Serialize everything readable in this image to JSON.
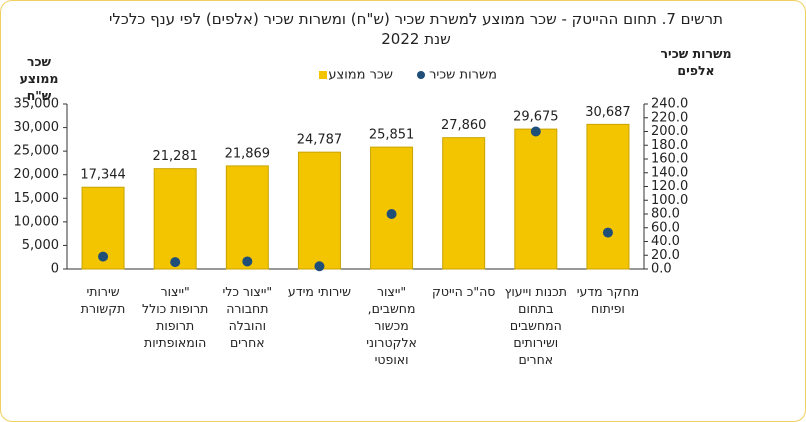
{
  "chart_data": {
    "type": "bar",
    "title": "תרשים 7. תחום ההייטק -  שכר ממוצע למשרת שכיר (ש\"ח) ומשרות שכיר (אלפים) לפי ענף כלכלי",
    "subtitle": "שנת 2022",
    "y_label": "שכר ממוצע ש\"ח",
    "y2_label": "משרות שכיר אלפים",
    "categories": [
      "שירותי תקשורת",
      "\"ייצור תרופות כולל תרופות הומאופתיות",
      "\"ייצור כלי תחבורה והובלה אחרים",
      "שירותי מידע",
      "\"ייצור מחשבים, מכשור אלקטרוני ואופטי",
      "סה\"כ הייטק",
      "תכנות וייעוץ בתחום המחשבים ושירותים אחרים",
      "מחקר מדעי ופיתוח"
    ],
    "series": [
      {
        "name": "שכר ממוצע",
        "color": "#f2c500",
        "values": [
          17344,
          21281,
          21869,
          24787,
          25851,
          27860,
          29675,
          30687
        ],
        "value_labels": [
          "17,344",
          "21,281",
          "21,869",
          "24,787",
          "25,851",
          "27,860",
          "29,675",
          "30,687"
        ]
      },
      {
        "name": "משרות שכיר",
        "color": "#1f4e79",
        "axis": "y2",
        "values": [
          18,
          10,
          11,
          4,
          80,
          null,
          200,
          53
        ]
      }
    ],
    "ylim": [
      0,
      35000
    ],
    "yticks": [
      0,
      {
        "value": 5000,
        "label": "5,000"
      },
      {
        "value": 10000,
        "label": "10,000"
      },
      {
        "value": 15000,
        "label": "15,000"
      },
      {
        "value": 20000,
        "label": "20,000"
      },
      {
        "value": 25000,
        "label": "25,000"
      },
      {
        "value": 30000,
        "label": "30,000"
      },
      {
        "value": 35000,
        "label": "35,000"
      }
    ],
    "y2lim": [
      0,
      240
    ],
    "y2ticks": [
      {
        "value": 0,
        "label": "0.0"
      },
      {
        "value": 20,
        "label": "20.0"
      },
      {
        "value": 40,
        "label": "40.0"
      },
      {
        "value": 60,
        "label": "60.0"
      },
      {
        "value": 80,
        "label": "80.0"
      },
      {
        "value": 100,
        "label": "100.0"
      },
      {
        "value": 120,
        "label": "120.0"
      },
      {
        "value": 140,
        "label": "140.0"
      },
      {
        "value": 160,
        "label": "160.0"
      },
      {
        "value": 180,
        "label": "180.0"
      },
      {
        "value": 200,
        "label": "200.0"
      },
      {
        "value": 220,
        "label": "220.0"
      },
      {
        "value": 240,
        "label": "240.0"
      }
    ]
  }
}
